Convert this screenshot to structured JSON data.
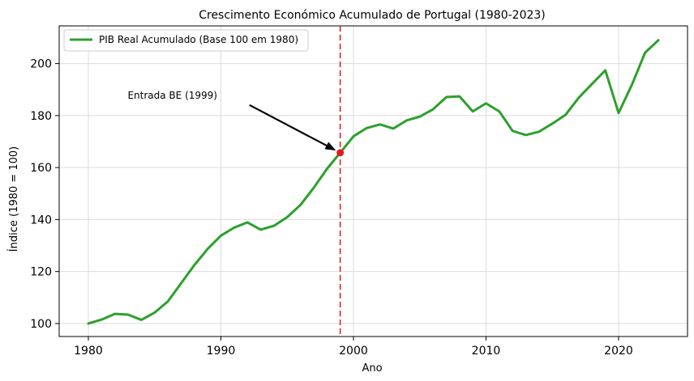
{
  "chart_data": {
    "type": "line",
    "title": "Crescimento Económico Acumulado de Portugal (1980-2023)",
    "xlabel": "Ano",
    "ylabel": "Índice (1980 = 100)",
    "xlim": [
      1977.8,
      2025.2
    ],
    "ylim": [
      95,
      214.5
    ],
    "xticks": [
      1980,
      1990,
      2000,
      2010,
      2020
    ],
    "yticks": [
      100,
      120,
      140,
      160,
      180,
      200
    ],
    "grid": true,
    "legend_position": "top-left",
    "series": [
      {
        "name": "PIB Real Acumulado (Base 100 em 1980)",
        "color": "#2ca02c",
        "x": [
          1980,
          1981,
          1982,
          1983,
          1984,
          1985,
          1986,
          1987,
          1988,
          1989,
          1990,
          1991,
          1992,
          1993,
          1994,
          1995,
          1996,
          1997,
          1998,
          1999,
          2000,
          2001,
          2002,
          2003,
          2004,
          2005,
          2006,
          2007,
          2008,
          2009,
          2010,
          2011,
          2012,
          2013,
          2014,
          2015,
          2016,
          2017,
          2018,
          2019,
          2020,
          2021,
          2022,
          2023
        ],
        "y": [
          100,
          101.5,
          103.7,
          103.4,
          101.4,
          104.2,
          108.5,
          115.5,
          122.5,
          128.7,
          133.8,
          136.9,
          138.9,
          136.1,
          137.6,
          140.9,
          145.6,
          152.2,
          159.5,
          165.7,
          172.0,
          175.2,
          176.6,
          175.0,
          178.1,
          179.6,
          182.4,
          187.1,
          187.4,
          181.6,
          184.7,
          181.6,
          174.1,
          172.5,
          173.8,
          176.9,
          180.3,
          186.9,
          192.2,
          197.4,
          181.0,
          191.8,
          204.2,
          209.0
        ]
      }
    ],
    "vline": {
      "x": 1999,
      "color": "#d62728"
    },
    "annotation": {
      "text": "Entrada BE (1999)",
      "point": {
        "x": 1999,
        "y": 165.7
      },
      "text_at": {
        "x": 1985,
        "y": 185
      },
      "marker_color": "#e31a1c"
    }
  }
}
